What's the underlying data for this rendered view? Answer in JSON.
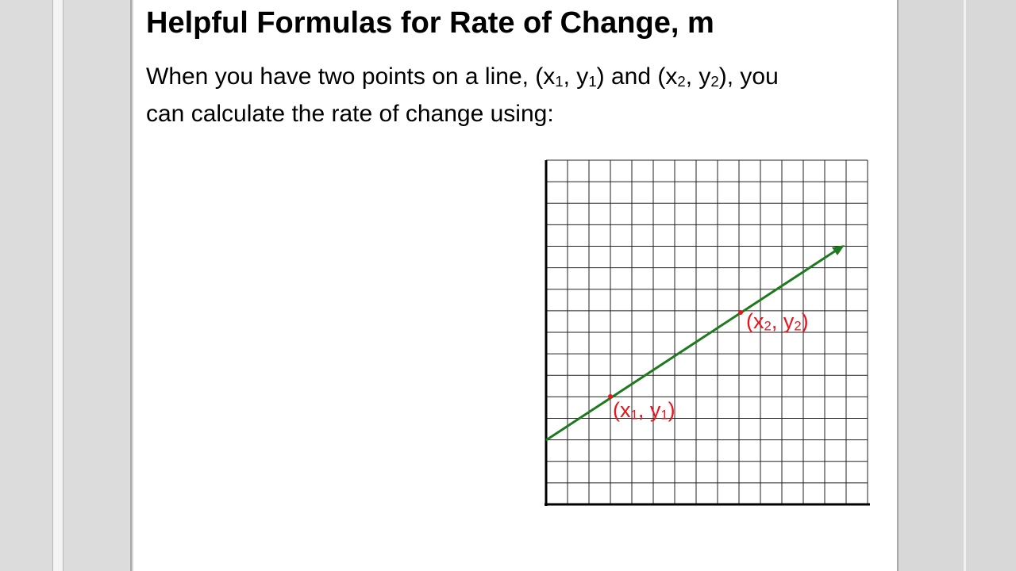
{
  "slide": {
    "title": "Helpful Formulas for Rate of Change, m",
    "body": [
      [
        "When you have two points on a line, (x",
        "1",
        ", y",
        "1",
        ") and (x",
        "2",
        ", y",
        "2",
        "), you"
      ],
      [
        "can calculate the rate of change using:"
      ]
    ],
    "points": [
      {
        "label": [
          "(x",
          "1",
          ", y",
          "1",
          ")"
        ]
      },
      {
        "label": [
          "(x",
          "2",
          ", y",
          "2",
          ")"
        ]
      }
    ]
  }
}
